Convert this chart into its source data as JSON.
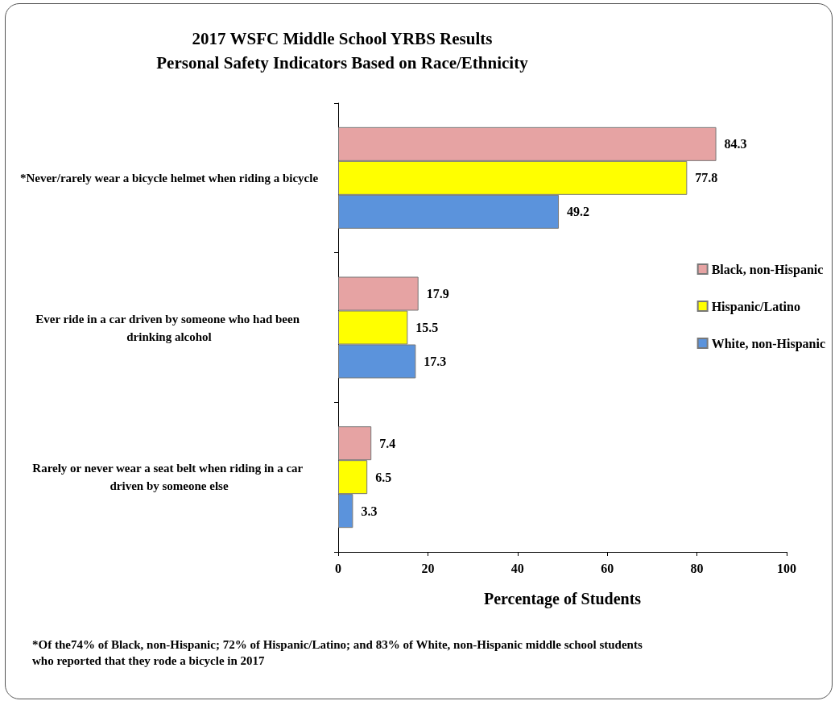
{
  "chart_data": {
    "type": "bar",
    "orientation": "horizontal",
    "title": "2017 WSFC Middle School YRBS Results\nPersonal Safety Indicators Based on Race/Ethnicity",
    "xlabel": "Percentage of Students",
    "categories": [
      "*Never/rarely wear a bicycle helmet when riding a bicycle",
      "Ever ride in a car driven by someone who had been drinking alcohol",
      "Rarely or never wear a seat belt when riding in a car driven by someone else"
    ],
    "series": [
      {
        "name": "Black, non-Hispanic",
        "color": "#e6a3a3",
        "values": [
          84.3,
          17.9,
          7.4
        ]
      },
      {
        "name": "Hispanic/Latino",
        "color": "#ffff00",
        "values": [
          77.8,
          15.5,
          6.5
        ]
      },
      {
        "name": "White, non-Hispanic",
        "color": "#5b93dc",
        "values": [
          49.2,
          17.3,
          3.3
        ]
      }
    ],
    "xlim": [
      0,
      100
    ],
    "xticks": [
      0,
      20,
      40,
      60,
      80,
      100
    ],
    "grid": false,
    "legend": "right",
    "data_labels": true,
    "annotations": [
      "*Of the74% of Black, non-Hispanic;  72% of Hispanic/Latino;  and 83% of White, non-Hispanic middle  school students who reported that they rode a bicycle in 2017"
    ]
  }
}
